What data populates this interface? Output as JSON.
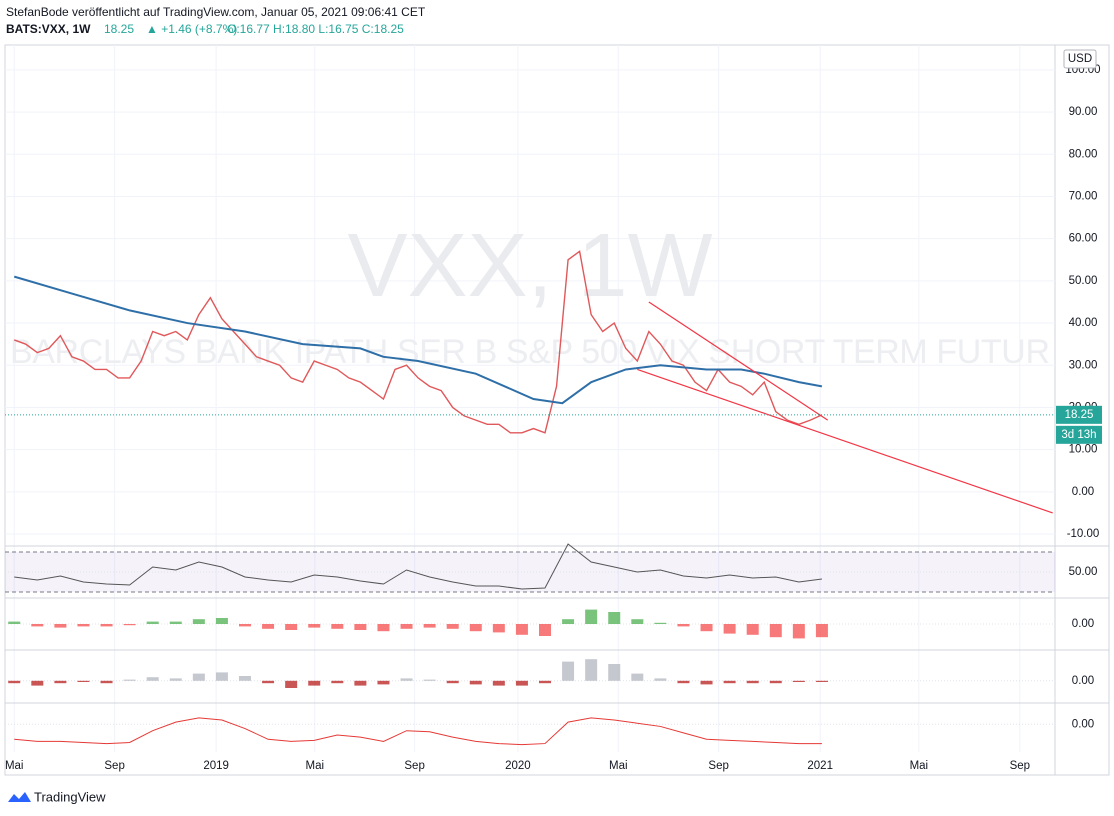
{
  "header": {
    "line1": "StefanBode veröffentlicht auf TradingView.com, Januar 05, 2021 09:06:41 CET",
    "symbol": "BATS:VXX, 1W",
    "price": "18.25",
    "change": "▲ +1.46 (+8.7%)",
    "ohlc": "O:16.77 H:18.80 L:16.75 C:18.25"
  },
  "footer": {
    "brand": "TradingView"
  },
  "chart_data": {
    "type": "line",
    "watermark": "VXX, 1W",
    "watermark_sub": "BARCLAYS BANK IPATH SER B S&P 500 VIX SHORT TERM FUTUR",
    "currency": "USD",
    "countdown": "3d 13h",
    "last_price": 18.25,
    "last_color": "#26a69a",
    "xlim": [
      -1.6,
      180.4
    ],
    "ylim": [
      -12.6,
      105.9
    ],
    "grid": true,
    "xticks": [
      {
        "value": 0,
        "label": "Mai"
      },
      {
        "value": 17.4,
        "label": "Sep"
      },
      {
        "value": 35,
        "label": "2019"
      },
      {
        "value": 52.1,
        "label": "Mai"
      },
      {
        "value": 69.4,
        "label": "Sep"
      },
      {
        "value": 87.3,
        "label": "2020"
      },
      {
        "value": 104.7,
        "label": "Mai"
      },
      {
        "value": 122.1,
        "label": "Sep"
      },
      {
        "value": 139.7,
        "label": "2021"
      },
      {
        "value": 156.8,
        "label": "Mai"
      },
      {
        "value": 174.3,
        "label": "Sep"
      }
    ],
    "yticks": [
      {
        "value": 100,
        "label": "100.00"
      },
      {
        "value": 90,
        "label": "90.00"
      },
      {
        "value": 80,
        "label": "80.00"
      },
      {
        "value": 70,
        "label": "70.00"
      },
      {
        "value": 60,
        "label": "60.00"
      },
      {
        "value": 50,
        "label": "50.00"
      },
      {
        "value": 40,
        "label": "40.00"
      },
      {
        "value": 30,
        "label": "30.00"
      },
      {
        "value": 20,
        "label": "20.00"
      },
      {
        "value": 10,
        "label": "10.00"
      },
      {
        "value": 0,
        "label": "0.00"
      },
      {
        "value": -10,
        "label": "-10.00"
      }
    ],
    "series": [
      {
        "color": "#e0585a",
        "x": [
          0,
          2,
          4,
          6,
          8,
          10,
          12,
          14,
          16,
          18,
          20,
          22,
          24,
          26,
          28,
          30,
          32,
          34,
          36,
          38,
          40,
          42,
          44,
          46,
          48,
          50,
          52,
          54,
          56,
          58,
          60,
          62,
          64,
          66,
          68,
          70,
          72,
          74,
          76,
          78,
          80,
          82,
          84,
          86,
          88,
          90,
          92,
          94,
          96,
          98,
          100,
          102,
          104,
          106,
          108,
          110,
          112,
          114,
          116,
          118,
          120,
          122,
          124,
          126,
          128,
          130,
          132,
          134,
          136,
          138,
          140
        ],
        "values": [
          36,
          35,
          33,
          34,
          37,
          32,
          31,
          29,
          29,
          27,
          27,
          31,
          38,
          37,
          38,
          36,
          42,
          46,
          41,
          38,
          35,
          32,
          31,
          30,
          27,
          26,
          31,
          30,
          29,
          27,
          26,
          24,
          22,
          29,
          30,
          27,
          25,
          24,
          20,
          18,
          17,
          16,
          16,
          14,
          14,
          15,
          14,
          25,
          55,
          57,
          42,
          38,
          40,
          34,
          31,
          38,
          35,
          31,
          30,
          26,
          24,
          29,
          26,
          25,
          23,
          26,
          19,
          17,
          16,
          17,
          18.25
        ]
      },
      {
        "color": "#2f6fa8",
        "x": [
          0,
          10,
          20,
          30,
          40,
          50,
          60,
          64,
          70,
          80,
          90,
          95,
          100,
          106,
          112,
          120,
          126,
          130,
          136,
          140
        ],
        "values": [
          51,
          47,
          43,
          40,
          38,
          35,
          34,
          32,
          31,
          28,
          22,
          21,
          26,
          29,
          30,
          29,
          29,
          28,
          26,
          25
        ]
      }
    ],
    "trendlines": [
      {
        "color": "#f23645",
        "x": [
          110,
          141
        ],
        "values": [
          45,
          17
        ]
      },
      {
        "color": "#f23645",
        "x": [
          108,
          180
        ],
        "values": [
          29,
          -5
        ]
      }
    ],
    "panels": [
      {
        "type": "line",
        "color": "#555",
        "ylim": [
          26,
          74
        ],
        "yticks": [
          {
            "value": 50,
            "label": "50.00"
          }
        ],
        "levels": [
          70,
          30
        ],
        "x": [
          0,
          4,
          8,
          12,
          16,
          20,
          24,
          28,
          32,
          36,
          40,
          44,
          48,
          52,
          56,
          60,
          64,
          68,
          72,
          76,
          80,
          84,
          88,
          92,
          96,
          100,
          104,
          108,
          112,
          116,
          120,
          124,
          128,
          132,
          136,
          140
        ],
        "values": [
          45,
          42,
          46,
          40,
          38,
          37,
          55,
          52,
          60,
          55,
          45,
          42,
          40,
          47,
          45,
          41,
          38,
          52,
          45,
          40,
          36,
          36,
          33,
          34,
          78,
          60,
          55,
          50,
          52,
          46,
          44,
          47,
          44,
          45,
          40,
          43
        ]
      },
      {
        "type": "bar",
        "color": "#f44c4c",
        "color_up": "#4caf50",
        "ylim": [
          -1,
          1
        ],
        "yticks": [
          {
            "value": 0,
            "label": "0.00"
          }
        ],
        "x": [
          0,
          4,
          8,
          12,
          16,
          20,
          24,
          28,
          32,
          36,
          40,
          44,
          48,
          52,
          56,
          60,
          64,
          68,
          72,
          76,
          80,
          84,
          88,
          92,
          96,
          100,
          104,
          108,
          112,
          116,
          120,
          124,
          128,
          132,
          136,
          140
        ],
        "values": [
          0.1,
          -0.1,
          -0.15,
          -0.1,
          -0.1,
          -0.05,
          0.1,
          0.1,
          0.2,
          0.25,
          -0.1,
          -0.2,
          -0.25,
          -0.15,
          -0.2,
          -0.25,
          -0.3,
          -0.2,
          -0.15,
          -0.2,
          -0.3,
          -0.35,
          -0.45,
          -0.5,
          0.2,
          0.6,
          0.5,
          0.2,
          0.05,
          -0.1,
          -0.3,
          -0.4,
          -0.45,
          -0.55,
          -0.6,
          -0.55
        ]
      },
      {
        "type": "bar",
        "color": "#b71c1c",
        "color_up": "#b2b5be",
        "ylim": [
          -0.8,
          1.2
        ],
        "yticks": [
          {
            "value": 0,
            "label": "0.00"
          }
        ],
        "x": [
          0,
          4,
          8,
          12,
          16,
          20,
          24,
          28,
          32,
          36,
          40,
          44,
          48,
          52,
          56,
          60,
          64,
          68,
          72,
          76,
          80,
          84,
          88,
          92,
          96,
          100,
          104,
          108,
          112,
          116,
          120,
          124,
          128,
          132,
          136,
          140
        ],
        "values": [
          -0.1,
          -0.2,
          -0.1,
          -0.05,
          -0.1,
          0.05,
          0.15,
          0.1,
          0.3,
          0.35,
          0.2,
          -0.1,
          -0.3,
          -0.2,
          -0.1,
          -0.2,
          -0.15,
          0.1,
          0.05,
          -0.1,
          -0.15,
          -0.2,
          -0.2,
          -0.1,
          0.8,
          0.9,
          0.7,
          0.3,
          0.1,
          -0.1,
          -0.15,
          -0.1,
          -0.1,
          -0.1,
          -0.05,
          -0.05
        ]
      },
      {
        "type": "line",
        "color": "#e53935",
        "ylim": [
          -1.2,
          0.9
        ],
        "yticks": [
          {
            "value": 0,
            "label": "0.00"
          }
        ],
        "x": [
          0,
          4,
          8,
          12,
          16,
          20,
          24,
          28,
          32,
          36,
          40,
          44,
          48,
          52,
          56,
          60,
          64,
          68,
          72,
          76,
          80,
          84,
          88,
          92,
          96,
          100,
          104,
          108,
          112,
          116,
          120,
          124,
          128,
          132,
          136,
          140
        ],
        "values": [
          -0.7,
          -0.8,
          -0.8,
          -0.85,
          -0.9,
          -0.85,
          -0.3,
          0.1,
          0.3,
          0.2,
          -0.2,
          -0.7,
          -0.8,
          -0.75,
          -0.5,
          -0.6,
          -0.8,
          -0.3,
          -0.35,
          -0.6,
          -0.8,
          -0.9,
          -0.95,
          -0.9,
          0.1,
          0.3,
          0.2,
          0.05,
          -0.1,
          -0.4,
          -0.7,
          -0.75,
          -0.8,
          -0.85,
          -0.9,
          -0.9
        ]
      }
    ]
  }
}
